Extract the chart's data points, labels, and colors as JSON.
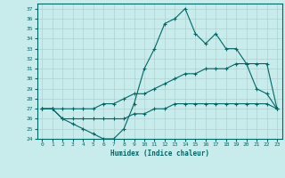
{
  "xlabel": "Humidex (Indice chaleur)",
  "xlim": [
    -0.5,
    23.5
  ],
  "ylim": [
    24,
    37.5
  ],
  "yticks": [
    24,
    25,
    26,
    27,
    28,
    29,
    30,
    31,
    32,
    33,
    34,
    35,
    36,
    37
  ],
  "xticks": [
    0,
    1,
    2,
    3,
    4,
    5,
    6,
    7,
    8,
    9,
    10,
    11,
    12,
    13,
    14,
    15,
    16,
    17,
    18,
    19,
    20,
    21,
    22,
    23
  ],
  "background_color": "#c8ecec",
  "line_color": "#006666",
  "grid_color": "#b0d0d0",
  "series": [
    {
      "x": [
        0,
        1,
        2,
        3,
        4,
        5,
        6,
        7,
        8,
        9,
        10,
        11,
        12,
        13,
        14,
        15,
        16,
        17,
        18,
        19,
        20,
        21,
        22,
        23
      ],
      "y": [
        27,
        27,
        26,
        25.5,
        25,
        24.5,
        24,
        24,
        25,
        27.5,
        31,
        33,
        35.5,
        36,
        37,
        34.5,
        33.5,
        34.5,
        33,
        33,
        31.5,
        29,
        28.5,
        27
      ]
    },
    {
      "x": [
        0,
        1,
        2,
        3,
        4,
        5,
        6,
        7,
        8,
        9,
        10,
        11,
        12,
        13,
        14,
        15,
        16,
        17,
        18,
        19,
        20,
        21,
        22,
        23
      ],
      "y": [
        27,
        27,
        27,
        27,
        27,
        27,
        27.5,
        27.5,
        28,
        28.5,
        28.5,
        29,
        29.5,
        30,
        30.5,
        30.5,
        31,
        31,
        31,
        31.5,
        31.5,
        31.5,
        31.5,
        27
      ]
    },
    {
      "x": [
        0,
        1,
        2,
        3,
        4,
        5,
        6,
        7,
        8,
        9,
        10,
        11,
        12,
        13,
        14,
        15,
        16,
        17,
        18,
        19,
        20,
        21,
        22,
        23
      ],
      "y": [
        27,
        27,
        26,
        26,
        26,
        26,
        26,
        26,
        26,
        26.5,
        26.5,
        27,
        27,
        27.5,
        27.5,
        27.5,
        27.5,
        27.5,
        27.5,
        27.5,
        27.5,
        27.5,
        27.5,
        27
      ]
    }
  ]
}
